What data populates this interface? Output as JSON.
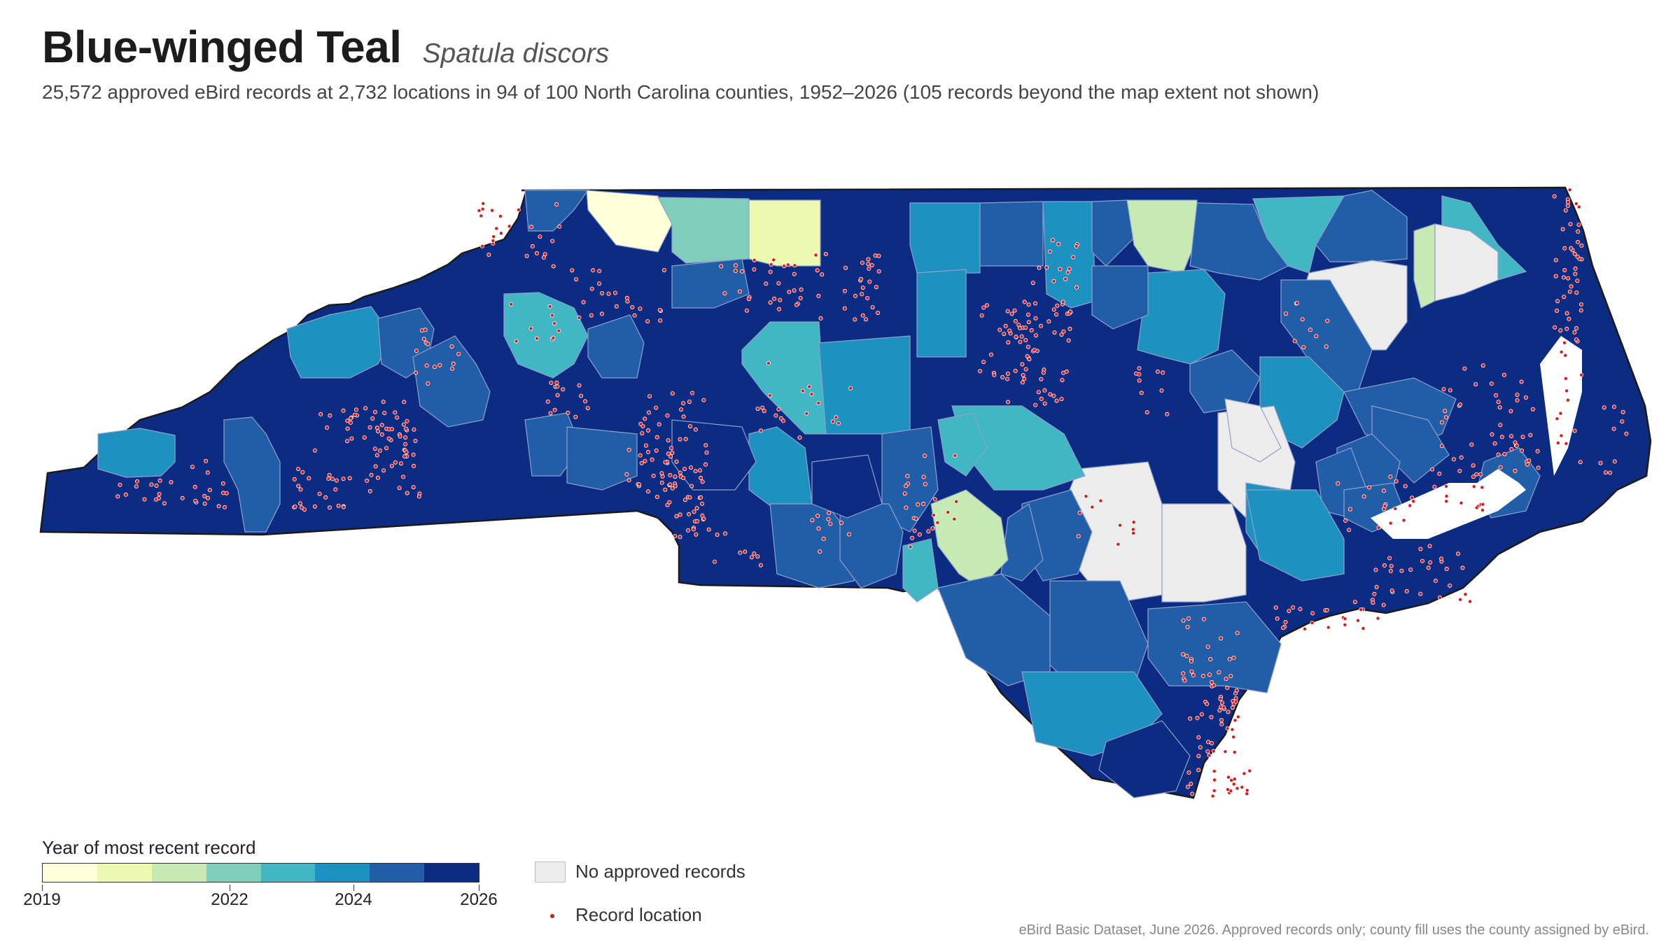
{
  "title": {
    "common_name": "Blue-winged Teal",
    "scientific_name": "Spatula discors"
  },
  "subtitle": "25,572 approved eBird records at 2,732 locations in 94 of 100 North Carolina counties, 1952–2026 (105 records beyond the map extent not shown)",
  "legend": {
    "title": "Year of most recent record",
    "ticks": [
      "2019",
      "2022",
      "2024",
      "2026"
    ],
    "colors": [
      "#ffffd9",
      "#edf8b1",
      "#c7e9b4",
      "#7fcdbb",
      "#41b6c4",
      "#1d91c0",
      "#225ea8",
      "#0c2c84"
    ],
    "no_records_label": "No approved records",
    "no_records_color": "#ececec",
    "record_label": "Record location",
    "record_color": "#d7191c"
  },
  "source": "eBird Basic Dataset, June 2026. Approved records only; county fill uses the county assigned by eBird."
}
